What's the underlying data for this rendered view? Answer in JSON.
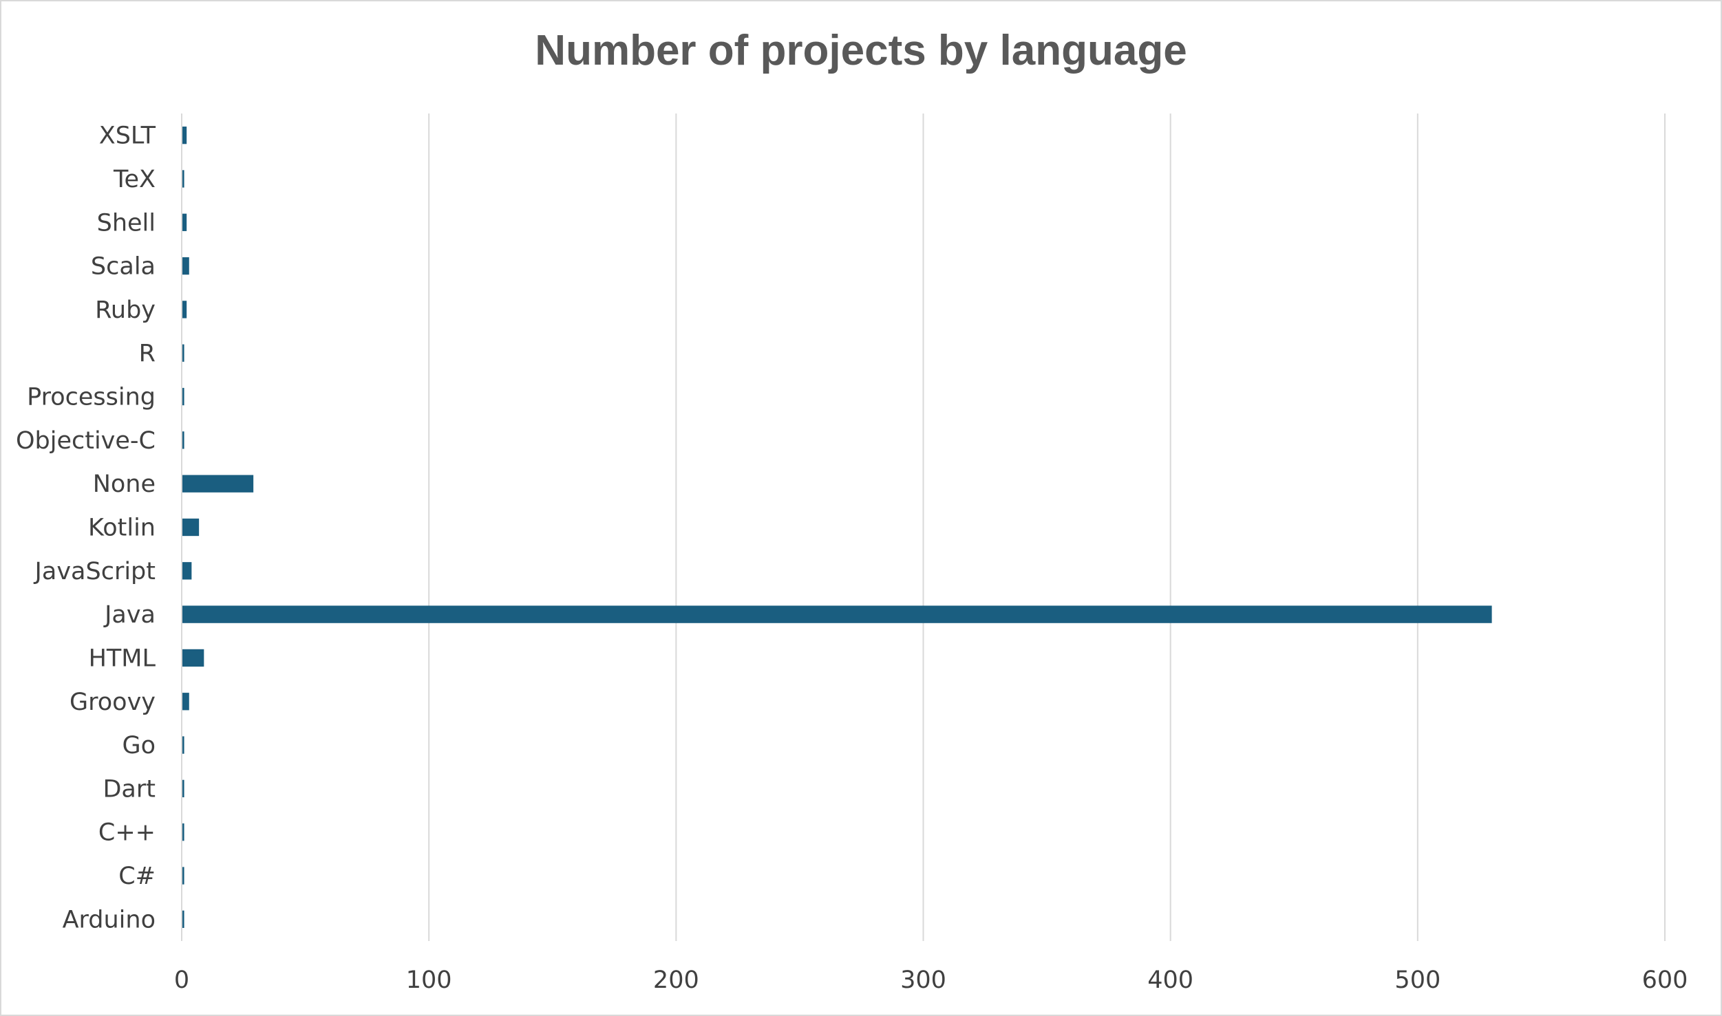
{
  "chart_data": {
    "type": "bar",
    "orientation": "horizontal",
    "title": "Number of projects by language",
    "xlabel": "",
    "ylabel": "",
    "categories": [
      "Arduino",
      "C#",
      "C++",
      "Dart",
      "Go",
      "Groovy",
      "HTML",
      "Java",
      "JavaScript",
      "Kotlin",
      "None",
      "Objective-C",
      "Processing",
      "R",
      "Ruby",
      "Scala",
      "Shell",
      "TeX",
      "XSLT"
    ],
    "values": [
      1,
      1,
      1,
      1,
      1,
      3,
      9,
      530,
      4,
      7,
      29,
      1,
      1,
      1,
      2,
      3,
      2,
      1,
      2
    ],
    "xlim": [
      0,
      600
    ],
    "xticks": [
      0,
      100,
      200,
      300,
      400,
      500,
      600
    ],
    "grid": true,
    "legend": "none",
    "bar_color": "#1a5e80",
    "grid_color": "#d9d9d9"
  }
}
